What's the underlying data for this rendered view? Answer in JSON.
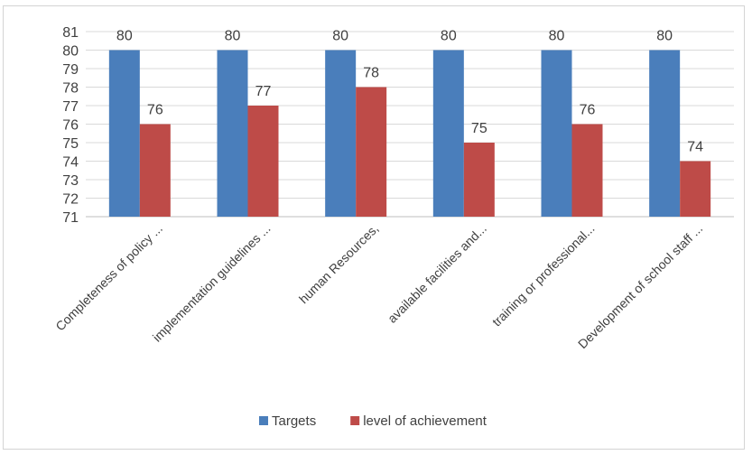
{
  "chart_data": {
    "type": "bar",
    "categories": [
      "Completeness of policy ...",
      "implementation guidelines ...",
      "human Resources,",
      "available facilities and...",
      "training or professional...",
      "Development of school staff ..."
    ],
    "series": [
      {
        "name": "Targets",
        "values": [
          80,
          80,
          80,
          80,
          80,
          80
        ],
        "color": "#4a7ebb"
      },
      {
        "name": "level of achievement",
        "values": [
          76,
          77,
          78,
          75,
          76,
          74
        ],
        "color": "#be4b48"
      }
    ],
    "yticks": [
      71,
      72,
      73,
      74,
      75,
      76,
      77,
      78,
      79,
      80,
      81
    ],
    "ylim": [
      71,
      81
    ],
    "grid": true,
    "legend_position": "bottom",
    "title": "",
    "xlabel": "",
    "ylabel": ""
  }
}
